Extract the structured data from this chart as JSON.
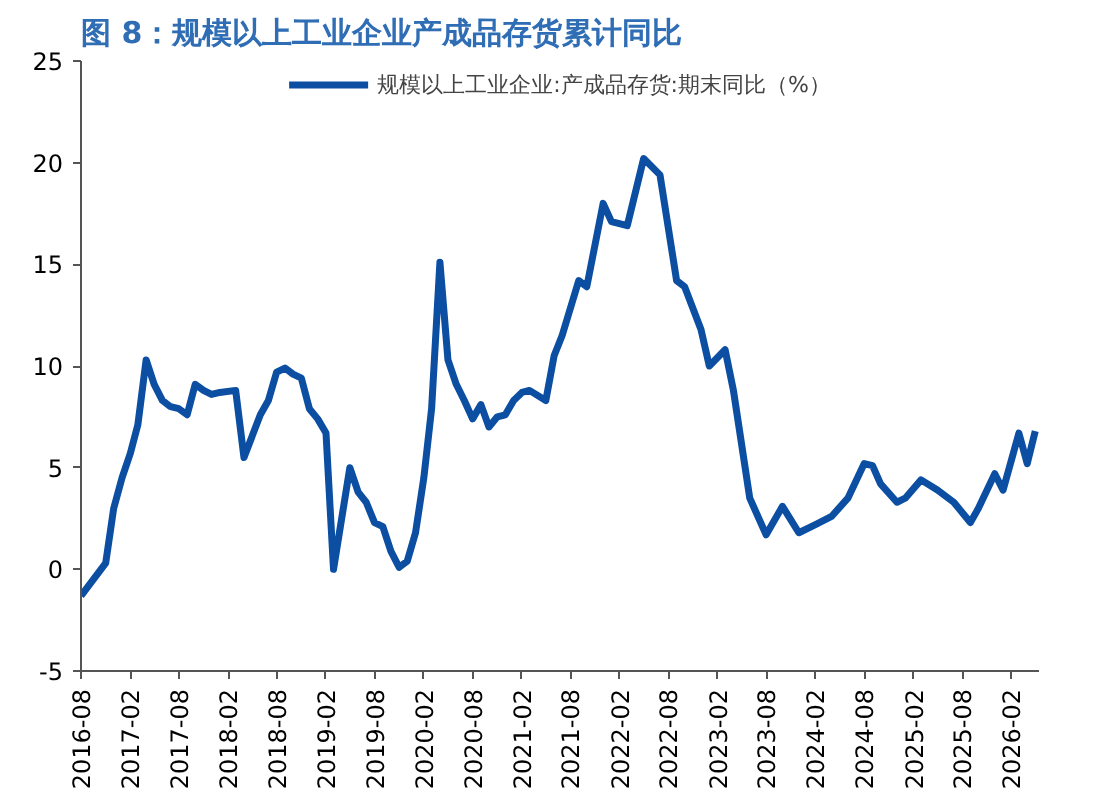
{
  "chart_data": {
    "type": "line",
    "title": "图 8：规模以上工业企业产成品存货累计同比",
    "x": [
      "2016-08",
      "2016-11",
      "2016-12",
      "2017-01",
      "2017-02",
      "2017-03",
      "2017-04",
      "2017-05",
      "2017-06",
      "2017-07",
      "2017-08",
      "2017-09",
      "2017-10",
      "2017-11",
      "2017-12",
      "2018-01",
      "2018-03",
      "2018-04",
      "2018-06",
      "2018-07",
      "2018-08",
      "2018-09",
      "2018-10",
      "2018-11",
      "2018-12",
      "2019-01",
      "2019-02",
      "2019-03",
      "2019-05",
      "2019-06",
      "2019-07",
      "2019-08",
      "2019-09",
      "2019-10",
      "2019-11",
      "2019-12",
      "2020-01",
      "2020-02",
      "2020-03",
      "2020-04",
      "2020-05",
      "2020-06",
      "2020-07",
      "2020-08",
      "2020-09",
      "2020-10",
      "2020-11",
      "2020-12",
      "2021-01",
      "2021-02",
      "2021-03",
      "2021-05",
      "2021-06",
      "2021-07",
      "2021-09",
      "2021-10",
      "2021-12",
      "2022-01",
      "2022-03",
      "2022-05",
      "2022-07",
      "2022-09",
      "2022-10",
      "2022-12",
      "2023-01",
      "2023-03",
      "2023-04",
      "2023-06",
      "2023-08",
      "2023-10",
      "2023-12",
      "2024-02",
      "2024-04",
      "2024-06",
      "2024-08",
      "2024-09",
      "2024-10",
      "2024-12",
      "2025-01",
      "2025-03",
      "2025-05",
      "2025-07",
      "2025-09",
      "2025-10",
      "2025-12",
      "2026-01",
      "2026-03",
      "2026-04",
      "2026-05"
    ],
    "series": [
      {
        "name": "规模以上工业企业:产成品存货:期末同比（%）",
        "color": "#0b4ea2",
        "values": [
          -1.3,
          0.3,
          3.0,
          4.5,
          5.7,
          7.1,
          10.3,
          9.1,
          8.3,
          8.0,
          7.9,
          7.6,
          9.1,
          8.8,
          8.6,
          8.7,
          8.8,
          5.5,
          7.6,
          8.3,
          9.7,
          9.9,
          9.6,
          9.4,
          7.9,
          7.4,
          6.7,
          0,
          5.0,
          3.8,
          3.3,
          2.3,
          2.1,
          0.9,
          0.1,
          0.4,
          1.8,
          4.5,
          7.9,
          15.1,
          10.3,
          9.1,
          8.3,
          7.4,
          8.1,
          7.0,
          7.5,
          7.6,
          8.3,
          8.7,
          8.8,
          8.3,
          10.5,
          11.5,
          14.2,
          13.9,
          18.0,
          17.1,
          16.9,
          20.2,
          19.4,
          14.2,
          13.9,
          11.8,
          10.0,
          10.8,
          8.8,
          3.5,
          1.7,
          3.1,
          1.8,
          2.2,
          2.6,
          3.5,
          5.2,
          5.1,
          4.2,
          3.3,
          3.5,
          4.4,
          3.9,
          3.3,
          2.3,
          3.0,
          4.7,
          3.9,
          6.7,
          5.2,
          6.8
        ]
      }
    ],
    "xlim": [
      "2016-08",
      "2026-05-15"
    ],
    "xticks": [
      "2016-08",
      "2017-02",
      "2017-08",
      "2018-02",
      "2018-08",
      "2019-02",
      "2019-08",
      "2020-02",
      "2020-08",
      "2021-02",
      "2021-08",
      "2022-02",
      "2022-08",
      "2023-02",
      "2023-08",
      "2024-02",
      "2024-08",
      "2025-02",
      "2025-08",
      "2026-02"
    ],
    "ylim": [
      -5,
      25
    ],
    "yticks": [
      -5,
      0,
      5,
      10,
      15,
      20,
      25
    ],
    "grid": false,
    "legend": "top",
    "line_style": "solid",
    "marker": "none"
  }
}
